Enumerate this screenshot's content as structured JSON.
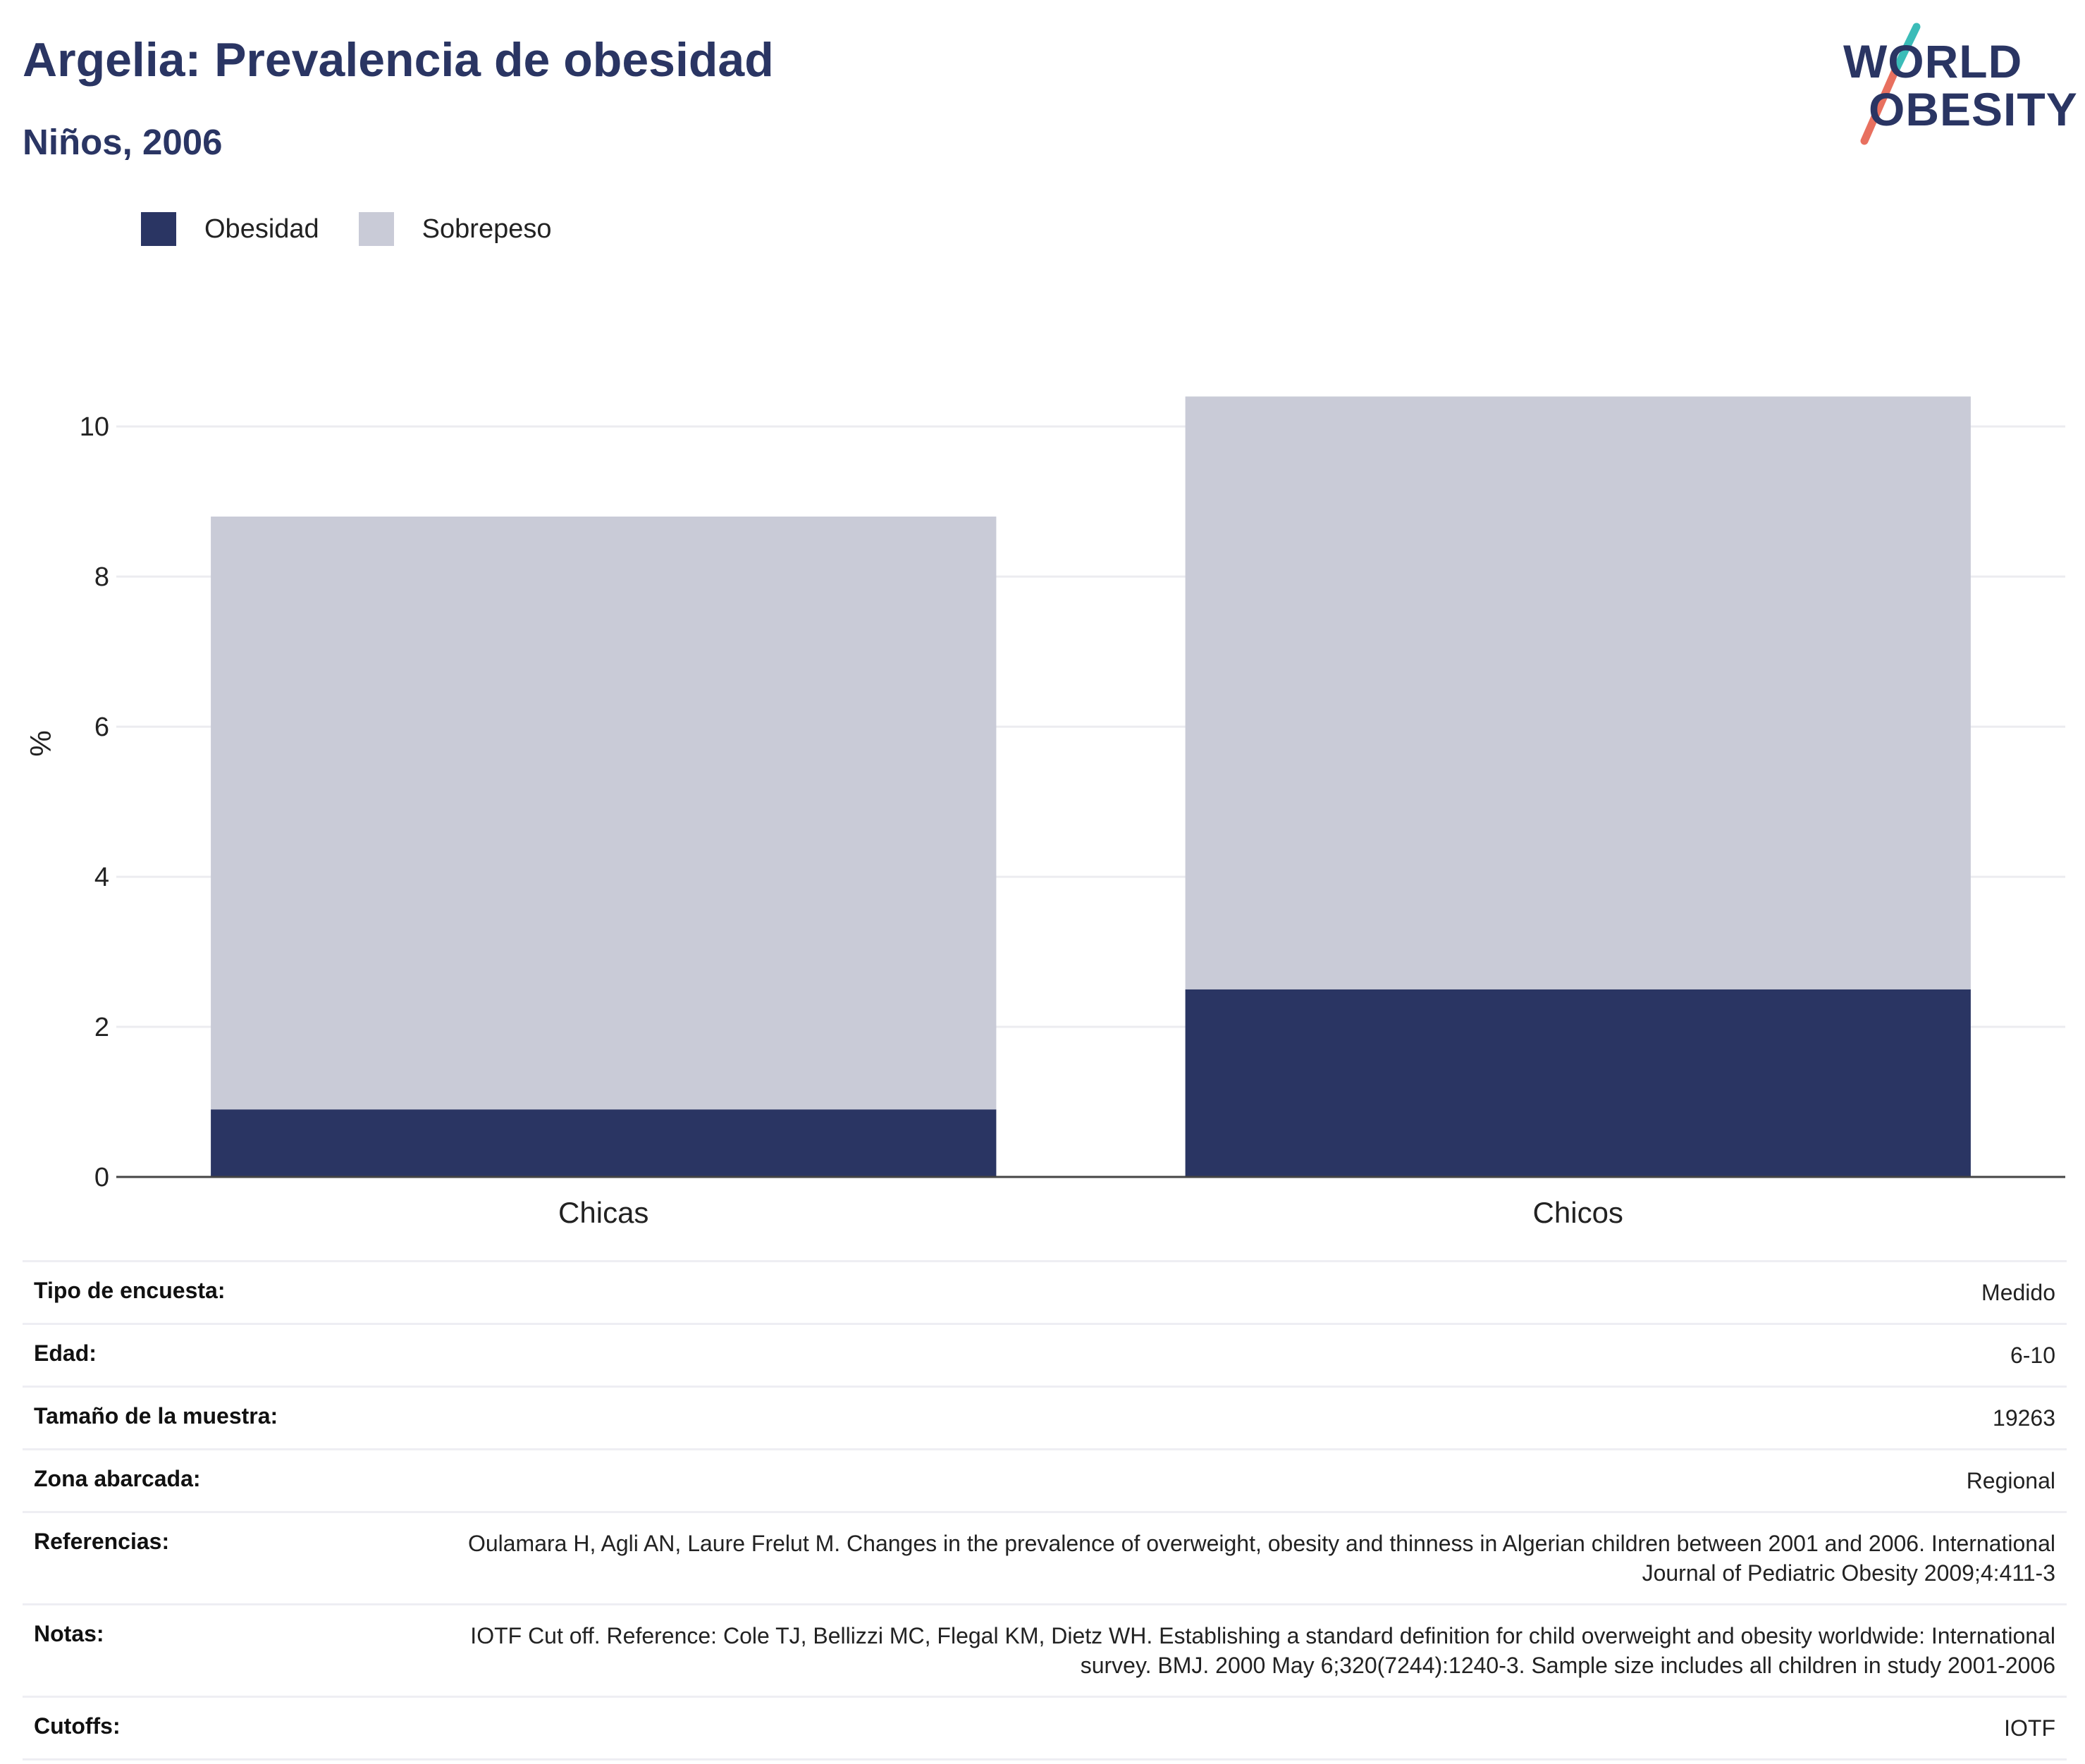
{
  "header": {
    "title": "Argelia: Prevalencia de obesidad",
    "subtitle": "Niños, 2006"
  },
  "logo": {
    "line1": "WORLD",
    "line2": "OBESITY",
    "slash_color_top": "#3bbcb8",
    "slash_color_bottom": "#e8705f"
  },
  "legend": {
    "items": [
      {
        "label": "Obesidad",
        "color": "#2a3563"
      },
      {
        "label": "Sobrepeso",
        "color": "#c9cbd7"
      }
    ]
  },
  "chart_data": {
    "type": "bar",
    "stacked": true,
    "categories": [
      "Chicas",
      "Chicos"
    ],
    "series": [
      {
        "name": "Obesidad",
        "color": "#2a3563",
        "values": [
          0.9,
          2.5
        ]
      },
      {
        "name": "Sobrepeso",
        "color": "#c9cbd7",
        "values": [
          7.9,
          7.9
        ]
      }
    ],
    "ylabel": "%",
    "ylim": [
      0,
      10.8
    ],
    "yticks": [
      0,
      2,
      4,
      6,
      8,
      10
    ],
    "grid": true,
    "legend_position": "top-left"
  },
  "meta": {
    "rows": [
      {
        "label": "Tipo de encuesta:",
        "value": "Medido"
      },
      {
        "label": "Edad:",
        "value": "6-10"
      },
      {
        "label": "Tamaño de la muestra:",
        "value": "19263"
      },
      {
        "label": "Zona abarcada:",
        "value": "Regional"
      },
      {
        "label": "Referencias:",
        "value": "Oulamara H, Agli AN, Laure Frelut M. Changes in the prevalence of overweight, obesity and thinness in Algerian children between 2001 and 2006. International Journal of Pediatric Obesity 2009;4:411-3"
      },
      {
        "label": "Notas:",
        "value": "IOTF Cut off. Reference: Cole TJ, Bellizzi MC, Flegal KM, Dietz WH. Establishing a standard definition for child overweight and obesity worldwide: International survey. BMJ. 2000 May 6;320(7244):1240-3. Sample size includes all children in study 2001-2006"
      },
      {
        "label": "Cutoffs:",
        "value": "IOTF"
      }
    ]
  }
}
